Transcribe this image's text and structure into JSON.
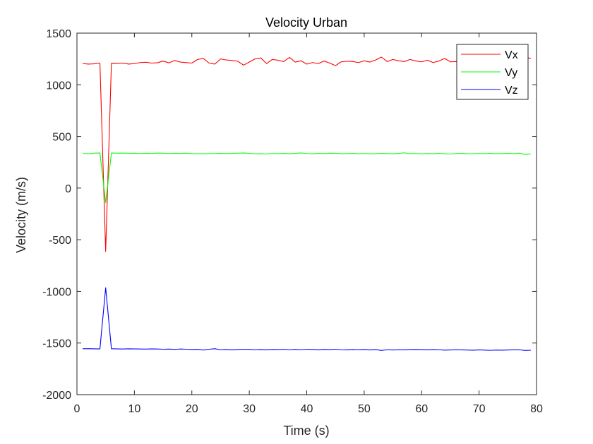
{
  "chart_data": {
    "type": "line",
    "title": "Velocity Urban",
    "xlabel": "Time (s)",
    "ylabel": "Velocity (m/s)",
    "xlim": [
      0,
      80
    ],
    "ylim": [
      -2000,
      1500
    ],
    "xticks": [
      0,
      10,
      20,
      30,
      40,
      50,
      60,
      70,
      80
    ],
    "yticks": [
      -2000,
      -1500,
      -1000,
      -500,
      0,
      500,
      1000,
      1500
    ],
    "xtick_labels": [
      "0",
      "10",
      "20",
      "30",
      "40",
      "50",
      "60",
      "70",
      "80"
    ],
    "ytick_labels": [
      "-2000",
      "-1500",
      "-1000",
      "-500",
      "0",
      "500",
      "1000",
      "1500"
    ],
    "grid": false,
    "legend": "top-right",
    "x": [
      1,
      2,
      3,
      4,
      5,
      6,
      7,
      8,
      9,
      10,
      11,
      12,
      13,
      14,
      15,
      16,
      17,
      18,
      19,
      20,
      21,
      22,
      23,
      24,
      25,
      26,
      27,
      28,
      29,
      30,
      31,
      32,
      33,
      34,
      35,
      36,
      37,
      38,
      39,
      40,
      41,
      42,
      43,
      44,
      45,
      46,
      47,
      48,
      49,
      50,
      51,
      52,
      53,
      54,
      55,
      56,
      57,
      58,
      59,
      60,
      61,
      62,
      63,
      64,
      65,
      66,
      67,
      68,
      69,
      70,
      71,
      72,
      73,
      74,
      75,
      76,
      77,
      78,
      79
    ],
    "series": [
      {
        "name": "Vx",
        "color": "#ff0000",
        "values": [
          1205,
          1200,
          1203,
          1210,
          -615,
          1208,
          1207,
          1210,
          1200,
          1205,
          1215,
          1218,
          1210,
          1213,
          1230,
          1212,
          1235,
          1220,
          1215,
          1210,
          1245,
          1255,
          1210,
          1200,
          1250,
          1240,
          1235,
          1228,
          1190,
          1220,
          1250,
          1260,
          1205,
          1245,
          1238,
          1225,
          1265,
          1220,
          1232,
          1200,
          1215,
          1205,
          1230,
          1210,
          1185,
          1222,
          1228,
          1225,
          1215,
          1232,
          1220,
          1240,
          1268,
          1225,
          1245,
          1232,
          1225,
          1245,
          1230,
          1222,
          1238,
          1215,
          1230,
          1255,
          1222,
          1225,
          1218,
          1235,
          1240,
          1245,
          1210,
          1232,
          1225,
          1228,
          1240,
          1225,
          1235,
          1268,
          1255
        ]
      },
      {
        "name": "Vy",
        "color": "#00ff00",
        "values": [
          335,
          332,
          338,
          340,
          -140,
          340,
          338,
          339,
          337,
          338,
          335,
          337,
          336,
          339,
          338,
          335,
          337,
          336,
          338,
          334,
          333,
          332,
          334,
          335,
          336,
          334,
          337,
          338,
          340,
          336,
          331,
          333,
          330,
          335,
          332,
          336,
          333,
          336,
          340,
          335,
          332,
          336,
          334,
          338,
          337,
          333,
          334,
          336,
          332,
          335,
          331,
          333,
          336,
          334,
          332,
          336,
          341,
          333,
          335,
          331,
          334,
          333,
          336,
          332,
          330,
          334,
          336,
          333,
          332,
          335,
          333,
          336,
          332,
          334,
          336,
          333,
          338,
          325,
          330
        ]
      },
      {
        "name": "Vz",
        "color": "#0000ff",
        "values": [
          -1555,
          -1555,
          -1556,
          -1557,
          -965,
          -1555,
          -1557,
          -1558,
          -1556,
          -1557,
          -1558,
          -1559,
          -1557,
          -1558,
          -1560,
          -1559,
          -1561,
          -1558,
          -1560,
          -1562,
          -1561,
          -1568,
          -1560,
          -1555,
          -1565,
          -1563,
          -1566,
          -1562,
          -1560,
          -1561,
          -1565,
          -1563,
          -1566,
          -1562,
          -1564,
          -1560,
          -1565,
          -1561,
          -1565,
          -1560,
          -1562,
          -1566,
          -1561,
          -1564,
          -1560,
          -1565,
          -1566,
          -1563,
          -1565,
          -1562,
          -1567,
          -1563,
          -1572,
          -1565,
          -1567,
          -1565,
          -1566,
          -1563,
          -1562,
          -1564,
          -1566,
          -1563,
          -1565,
          -1569,
          -1567,
          -1565,
          -1566,
          -1568,
          -1570,
          -1566,
          -1569,
          -1571,
          -1568,
          -1570,
          -1567,
          -1566,
          -1565,
          -1572,
          -1570
        ]
      }
    ]
  }
}
